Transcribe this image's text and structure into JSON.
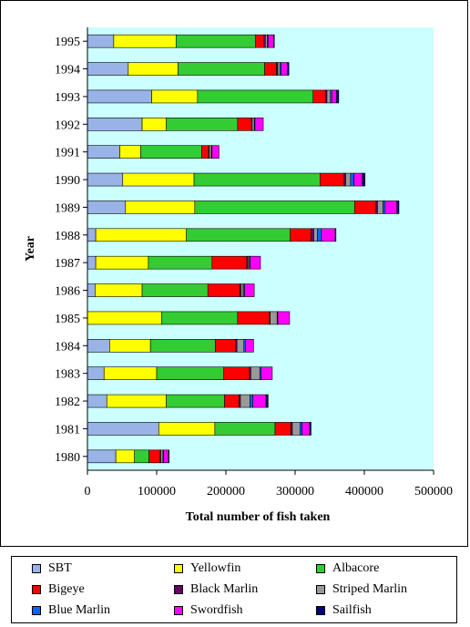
{
  "chart_data": {
    "type": "bar",
    "orientation": "horizontal",
    "stacked": true,
    "xlabel": "Total number of fish taken",
    "ylabel": "Year",
    "xlim": [
      0,
      500000
    ],
    "xticks": [
      0,
      100000,
      200000,
      300000,
      400000,
      500000
    ],
    "xtick_labels": [
      "0",
      "100000",
      "200000",
      "300000",
      "400000",
      "500000"
    ],
    "plot_background": "#ccffff",
    "legend_placement": "bottom",
    "categories": [
      "1995",
      "1994",
      "1993",
      "1992",
      "1991",
      "1990",
      "1989",
      "1988",
      "1987",
      "1986",
      "1985",
      "1984",
      "1983",
      "1982",
      "1981",
      "1980"
    ],
    "series": [
      {
        "name": "SBT",
        "color": "#99b3e6",
        "values": [
          38000,
          59000,
          93000,
          79000,
          47000,
          51000,
          55000,
          12000,
          12000,
          11000,
          0,
          32000,
          24000,
          28000,
          103000,
          41000
        ]
      },
      {
        "name": "Yellowfin",
        "color": "#ffff00",
        "values": [
          90000,
          72000,
          66000,
          35000,
          30000,
          103000,
          100000,
          131000,
          76000,
          68000,
          107000,
          59000,
          76000,
          86000,
          81000,
          27000
        ]
      },
      {
        "name": "Albacore",
        "color": "#33cc33",
        "values": [
          115000,
          125000,
          167000,
          103000,
          88000,
          182000,
          231000,
          150000,
          92000,
          95000,
          110000,
          94000,
          97000,
          84000,
          87000,
          21000
        ]
      },
      {
        "name": "Bigeye",
        "color": "#ff0000",
        "values": [
          12000,
          17000,
          18000,
          20000,
          10000,
          35000,
          31000,
          30000,
          50000,
          46000,
          46000,
          29000,
          37000,
          21000,
          23000,
          16000
        ]
      },
      {
        "name": "Black Marlin",
        "color": "#660066",
        "values": [
          2000,
          2000,
          2000,
          1000,
          1000,
          2000,
          2000,
          4000,
          2000,
          2000,
          1000,
          2000,
          2000,
          2000,
          2000,
          1000
        ]
      },
      {
        "name": "Striped Marlin",
        "color": "#999999",
        "values": [
          3000,
          3000,
          5000,
          3000,
          3000,
          7000,
          8000,
          5000,
          2000,
          3000,
          10000,
          10000,
          13000,
          14000,
          11000,
          3000
        ]
      },
      {
        "name": "Blue Marlin",
        "color": "#0066ff",
        "values": [
          1000,
          2000,
          2000,
          1000,
          1000,
          5000,
          3000,
          6000,
          1000,
          2000,
          1000,
          2000,
          2000,
          4000,
          3000,
          1000
        ]
      },
      {
        "name": "Swordfish",
        "color": "#ff00ff",
        "values": [
          8000,
          9000,
          7000,
          12000,
          10000,
          12000,
          17000,
          20000,
          15000,
          14000,
          17000,
          12000,
          16000,
          19000,
          11000,
          7000
        ]
      },
      {
        "name": "Sailfish",
        "color": "#000080",
        "values": [
          1000,
          2000,
          3000,
          0,
          0,
          4000,
          3000,
          1000,
          0,
          0,
          0,
          0,
          0,
          3000,
          2000,
          1000
        ]
      }
    ]
  }
}
